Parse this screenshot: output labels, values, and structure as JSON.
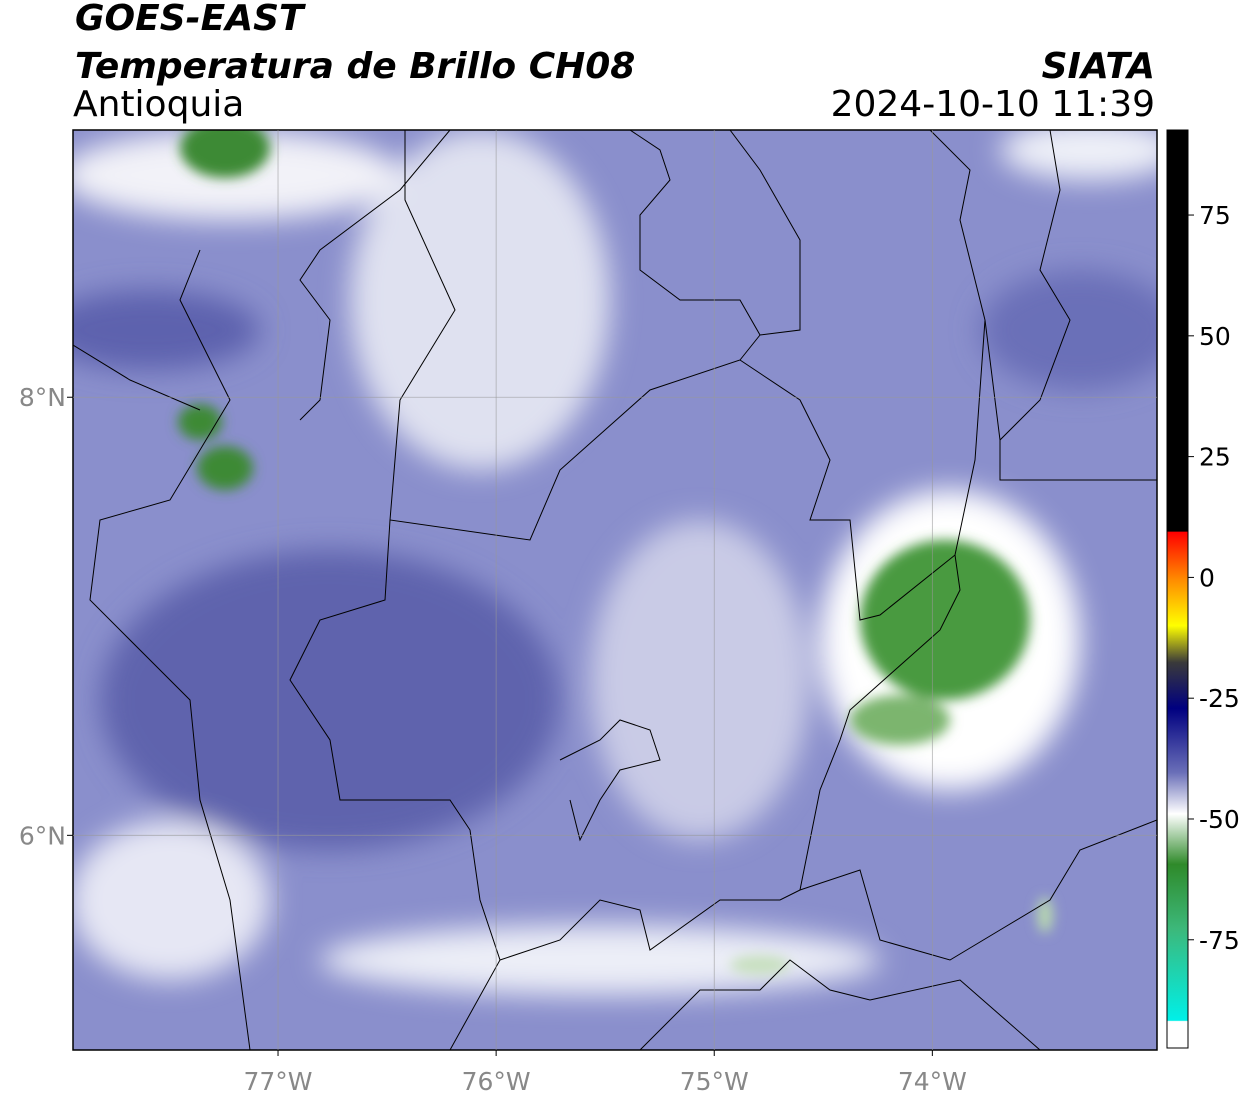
{
  "header": {
    "title": "GOES-EAST",
    "subtitle": "Temperatura de Brillo CH08",
    "region": "Antioquia",
    "source": "SIATA",
    "datetime": "2024-10-10 11:39"
  },
  "map": {
    "xlim": [
      -77.94,
      -72.97
    ],
    "ylim": [
      5.02,
      9.22
    ],
    "xticks": [
      {
        "value": -77,
        "label": "77°W"
      },
      {
        "value": -76,
        "label": "76°W"
      },
      {
        "value": -75,
        "label": "75°W"
      },
      {
        "value": -74,
        "label": "74°W"
      }
    ],
    "yticks": [
      {
        "value": 6,
        "label": "6°N"
      },
      {
        "value": 8,
        "label": "8°N"
      }
    ]
  },
  "colorbar": {
    "lim": [
      -97.4,
      92.6
    ],
    "ticks": [
      75,
      50,
      25,
      0,
      -25,
      -50,
      -75
    ]
  }
}
